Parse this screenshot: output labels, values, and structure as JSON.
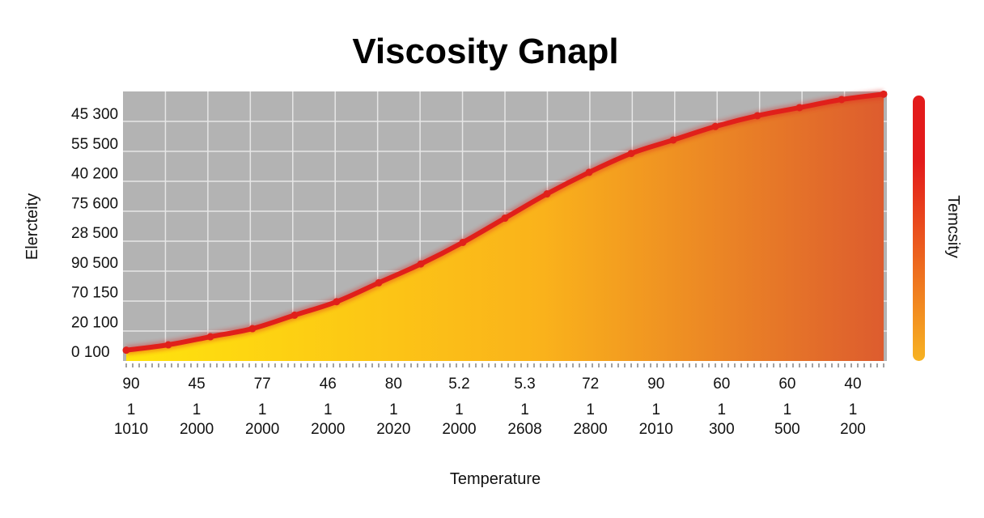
{
  "chart_data": {
    "type": "area",
    "title": "Viscosity  Gnapl",
    "xlabel": "Temperature",
    "ylabel": "Elercteity",
    "colorbar_label": "Temcsity",
    "y_tick_labels": [
      "45  300",
      "55  500",
      "40  200",
      "75  600",
      "28  500",
      "90  500",
      "70  150",
      "20  100",
      "0  100"
    ],
    "x_tick_labels": [
      {
        "top": "90",
        "mid": "1",
        "bottom": "1010"
      },
      {
        "top": "45",
        "mid": "1",
        "bottom": "2000"
      },
      {
        "top": "77",
        "mid": "1",
        "bottom": "2000"
      },
      {
        "top": "46",
        "mid": "1",
        "bottom": "2000"
      },
      {
        "top": "80",
        "mid": "1",
        "bottom": "2020"
      },
      {
        "top": "5.2",
        "mid": "1",
        "bottom": "2000"
      },
      {
        "top": "5.3",
        "mid": "1",
        "bottom": "2608"
      },
      {
        "top": "72",
        "mid": "1",
        "bottom": "2800"
      },
      {
        "top": "90",
        "mid": "1",
        "bottom": "2010"
      },
      {
        "top": "60",
        "mid": "1",
        "bottom": "300"
      },
      {
        "top": "60",
        "mid": "1",
        "bottom": "500"
      },
      {
        "top": "40",
        "mid": "1",
        "bottom": "200"
      }
    ],
    "series": [
      {
        "values": [
          0.04,
          0.06,
          0.09,
          0.12,
          0.17,
          0.22,
          0.29,
          0.36,
          0.44,
          0.53,
          0.62,
          0.7,
          0.77,
          0.82,
          0.87,
          0.91,
          0.94,
          0.97,
          0.99
        ]
      }
    ],
    "ylim": [
      0,
      1
    ],
    "grid": true,
    "colors": {
      "plot_background": "#b3b3b3",
      "grid": "#e6e6e6",
      "line": "#e0201b",
      "fill_start": "#ffe40d",
      "fill_mid": "#fab21b",
      "fill_end": "#dd5c2e",
      "colorbar_top": "#e31b1b",
      "colorbar_bottom": "#f7b322"
    }
  }
}
